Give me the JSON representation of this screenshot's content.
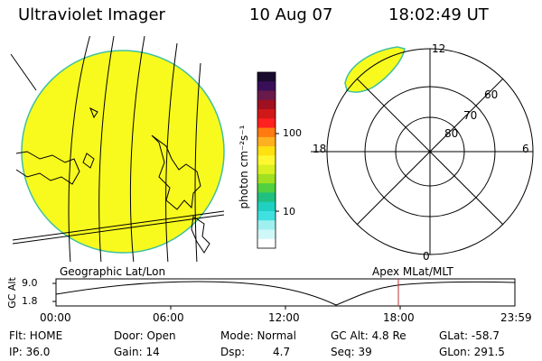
{
  "header": {
    "instrument": "Ultraviolet Imager",
    "date": "10 Aug 07",
    "time": "18:02:49 UT"
  },
  "colorbar": {
    "unit_label": "photon cm⁻²s⁻¹",
    "ticks": [
      "100",
      "10"
    ],
    "colors": [
      "#1a0a2e",
      "#3a0f5a",
      "#6a1a4a",
      "#a01020",
      "#d01818",
      "#ff2020",
      "#ff7a10",
      "#ffb020",
      "#ffe010",
      "#fff830",
      "#d8f020",
      "#a0e020",
      "#50d040",
      "#20c080",
      "#20d0c0",
      "#40e0e0",
      "#a0f0f0",
      "#d0f8f8",
      "#ffffff"
    ]
  },
  "geo_map": {
    "label": "Geographic Lat/Lon",
    "fill_color": "#f8fa1e"
  },
  "polar_map": {
    "label": "Apex MLat/MLT",
    "mlt_labels": {
      "top": "12",
      "right": "6",
      "bottom": "0",
      "left": "18"
    },
    "lat_labels": [
      "60",
      "70",
      "80"
    ]
  },
  "altitude_plot": {
    "ylabel": "GC Alt",
    "yticks": [
      "9.0",
      "1.8"
    ],
    "xticks": [
      "00:00",
      "06:00",
      "12:00",
      "18:00",
      "23:59"
    ],
    "marker_color": "#c03030"
  },
  "status": {
    "flt": "Flt: HOME",
    "ip": "IP: 36.0",
    "door": "Door: Open",
    "gain": "Gain: 14",
    "mode": "Mode: Normal",
    "dsp_label": "Dsp:",
    "dsp_value": "4.7",
    "gc_alt": "GC Alt: 4.8 Re",
    "seq": "Seq: 39",
    "glat": "GLat: -58.7",
    "glon": "GLon: 291.5"
  }
}
